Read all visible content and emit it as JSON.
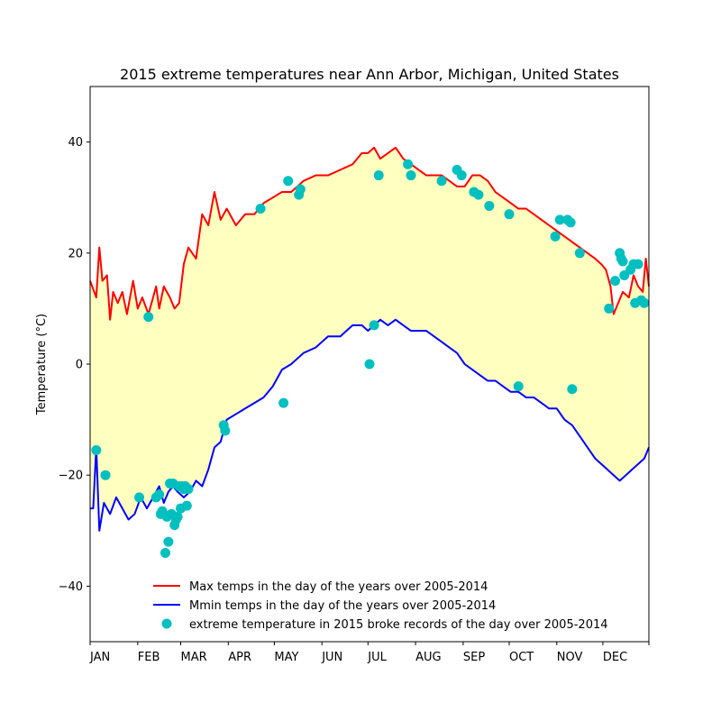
{
  "chart_data": {
    "type": "line",
    "title": "2015 extreme temperatures near  Ann Arbor, Michigan, United States",
    "xlabel": "",
    "ylabel": "Temperature ($^\\circ$C)",
    "ylabel_display": "Temperature (°C)",
    "xlim": [
      1,
      365
    ],
    "ylim": [
      -50,
      50
    ],
    "yticks": [
      -40,
      -20,
      0,
      20,
      40
    ],
    "yticklabels": [
      "−40",
      "−20",
      "0",
      "20",
      "40"
    ],
    "month_labels": [
      "JAN",
      "FEB",
      "MAR",
      "APR",
      "MAY",
      "JUN",
      "JUL",
      "AUG",
      "SEP",
      "OCT",
      "NOV",
      "DEC"
    ],
    "month_start_days": [
      1,
      32,
      60,
      91,
      121,
      152,
      182,
      213,
      244,
      274,
      305,
      335,
      365
    ],
    "fill_color": "#ffffc0",
    "legend_position": "lower-center",
    "series": [
      {
        "name": "Max temps in the day of the years over 2005-2014",
        "color": "#ff0000",
        "x": [
          1,
          5,
          7,
          9,
          12,
          14,
          16,
          19,
          22,
          25,
          29,
          32,
          35,
          39,
          42,
          44,
          46,
          49,
          53,
          56,
          59,
          62,
          65,
          70,
          74,
          78,
          82,
          86,
          90,
          96,
          102,
          108,
          114,
          120,
          126,
          132,
          140,
          148,
          156,
          164,
          172,
          178,
          182,
          186,
          190,
          195,
          200,
          205,
          210,
          215,
          220,
          225,
          230,
          235,
          240,
          245,
          250,
          255,
          260,
          265,
          270,
          275,
          280,
          285,
          290,
          295,
          300,
          305,
          310,
          315,
          320,
          325,
          330,
          334,
          337,
          340,
          342,
          345,
          348,
          352,
          355,
          358,
          361,
          363,
          365
        ],
        "y": [
          15,
          12,
          21,
          15,
          16,
          8,
          13,
          11,
          13,
          9,
          15,
          10,
          12,
          9,
          12,
          14,
          10,
          14,
          12,
          10,
          11,
          18,
          21,
          19,
          27,
          25,
          31,
          26,
          28,
          25,
          27,
          27,
          29,
          30,
          31,
          31,
          33,
          34,
          34,
          35,
          36,
          38,
          38,
          39,
          37,
          38,
          39,
          37,
          36,
          35,
          34,
          34,
          34,
          33,
          32,
          32,
          34,
          34,
          33,
          31,
          30,
          29,
          28,
          28,
          27,
          26,
          25,
          24,
          23,
          22,
          21,
          20,
          19,
          18,
          17,
          14,
          9,
          11,
          13,
          12,
          16,
          14,
          13,
          19,
          14
        ]
      },
      {
        "name": "Mmin temps in the day of the years over 2005-2014",
        "color": "#0000ff",
        "x": [
          1,
          3,
          5,
          7,
          10,
          14,
          18,
          22,
          26,
          30,
          34,
          38,
          42,
          46,
          49,
          52,
          55,
          58,
          62,
          66,
          70,
          74,
          78,
          82,
          86,
          90,
          96,
          102,
          108,
          114,
          120,
          126,
          132,
          140,
          148,
          156,
          164,
          172,
          178,
          182,
          186,
          190,
          195,
          200,
          205,
          210,
          215,
          220,
          225,
          230,
          235,
          240,
          245,
          250,
          255,
          260,
          265,
          270,
          275,
          280,
          285,
          290,
          295,
          300,
          305,
          310,
          315,
          320,
          325,
          330,
          334,
          338,
          342,
          346,
          350,
          354,
          358,
          362,
          365
        ],
        "y": [
          -26,
          -26,
          -15,
          -30,
          -25,
          -27,
          -24,
          -26,
          -28,
          -27,
          -24,
          -26,
          -24,
          -22,
          -25,
          -23,
          -22,
          -23,
          -24,
          -23,
          -21,
          -22,
          -19,
          -15,
          -14,
          -10,
          -9,
          -8,
          -7,
          -6,
          -4,
          -1,
          0,
          2,
          3,
          5,
          5,
          7,
          7,
          6,
          7,
          8,
          7,
          8,
          7,
          6,
          6,
          6,
          5,
          4,
          3,
          2,
          0,
          -1,
          -2,
          -3,
          -3,
          -4,
          -5,
          -5,
          -6,
          -6,
          -7,
          -8,
          -8,
          -10,
          -11,
          -13,
          -15,
          -17,
          -18,
          -19,
          -20,
          -21,
          -20,
          -19,
          -18,
          -17,
          -15
        ]
      }
    ],
    "scatter": {
      "name": "extreme temperature in 2015 broke records of the day over 2005-2014",
      "color": "#00bfbf",
      "x": [
        5,
        11,
        33,
        39,
        44,
        46,
        47,
        48,
        50,
        51,
        52,
        53,
        54,
        55,
        56,
        57,
        58,
        59,
        60,
        61,
        62,
        63,
        64,
        65,
        88,
        89,
        112,
        127,
        130,
        137,
        138,
        183,
        186,
        189,
        208,
        210,
        230,
        240,
        243,
        251,
        254,
        261,
        274,
        280,
        304,
        307,
        312,
        314,
        315,
        320,
        339,
        343,
        346,
        347,
        348,
        349,
        353,
        355,
        356,
        358,
        360,
        362
      ],
      "y": [
        -15.5,
        -20,
        -24,
        8.5,
        -24,
        -23.5,
        -27,
        -26.5,
        -34,
        -27.5,
        -32,
        -21.5,
        -27,
        -21.5,
        -29,
        -28,
        -27.5,
        -22,
        -26,
        -22,
        -22.5,
        -22,
        -25.5,
        -22.5,
        -11,
        -12,
        28,
        -7,
        33,
        30.5,
        31.5,
        0,
        7,
        34,
        36,
        34,
        33,
        35,
        34,
        31,
        30.5,
        28.5,
        27,
        -4,
        23,
        26,
        26,
        25.5,
        -4.5,
        20,
        10,
        15,
        20,
        19,
        18.5,
        16,
        17,
        18,
        11,
        18,
        11.5,
        11
      ]
    }
  }
}
